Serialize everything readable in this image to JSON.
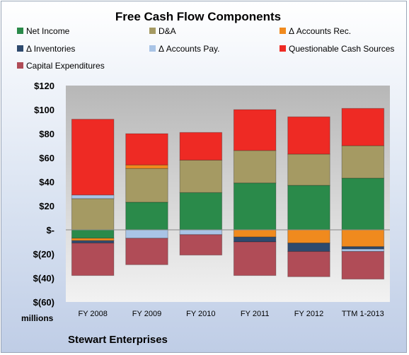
{
  "chart_data": {
    "type": "bar",
    "stacked": true,
    "title": "Free Cash Flow Components",
    "company": "Stewart Enterprises",
    "ylabel": "millions",
    "ylim": [
      -60,
      120
    ],
    "grid": false,
    "legend_position": "top",
    "categories": [
      "FY 2008",
      "FY 2009",
      "FY 2010",
      "FY 2011",
      "FY 2012",
      "TTM 1-2013"
    ],
    "y_ticks": [
      "$120",
      "$100",
      "$80",
      "$60",
      "$40",
      "$20",
      "$-",
      "$(20)",
      "$(40)",
      "$(60)"
    ],
    "series": [
      {
        "name": "Net Income",
        "color": "#2a8a4a",
        "values": [
          -7,
          23,
          31,
          39,
          37,
          43
        ]
      },
      {
        "name": "D&A",
        "color": "#a59a63",
        "values": [
          26,
          28,
          27,
          27,
          26,
          27
        ]
      },
      {
        "name": "Δ Accounts Rec.",
        "color": "#f08a1e",
        "values": [
          -2,
          3,
          0,
          -6,
          -11,
          -14
        ]
      },
      {
        "name": "Δ Inventories",
        "color": "#2e4a6e",
        "values": [
          -2,
          0,
          0,
          -4,
          -7,
          -2
        ]
      },
      {
        "name": "Δ Accounts Pay.",
        "color": "#a9c4e6",
        "values": [
          3,
          -7,
          -4,
          0,
          0,
          -2
        ]
      },
      {
        "name": "Questionable Cash Sources",
        "color": "#ee2a24",
        "values": [
          63,
          26,
          23,
          34,
          31,
          31
        ]
      },
      {
        "name": "Capital Expenditures",
        "color": "#b04c57",
        "values": [
          -27,
          -22,
          -17,
          -28,
          -21,
          -23
        ]
      }
    ]
  }
}
